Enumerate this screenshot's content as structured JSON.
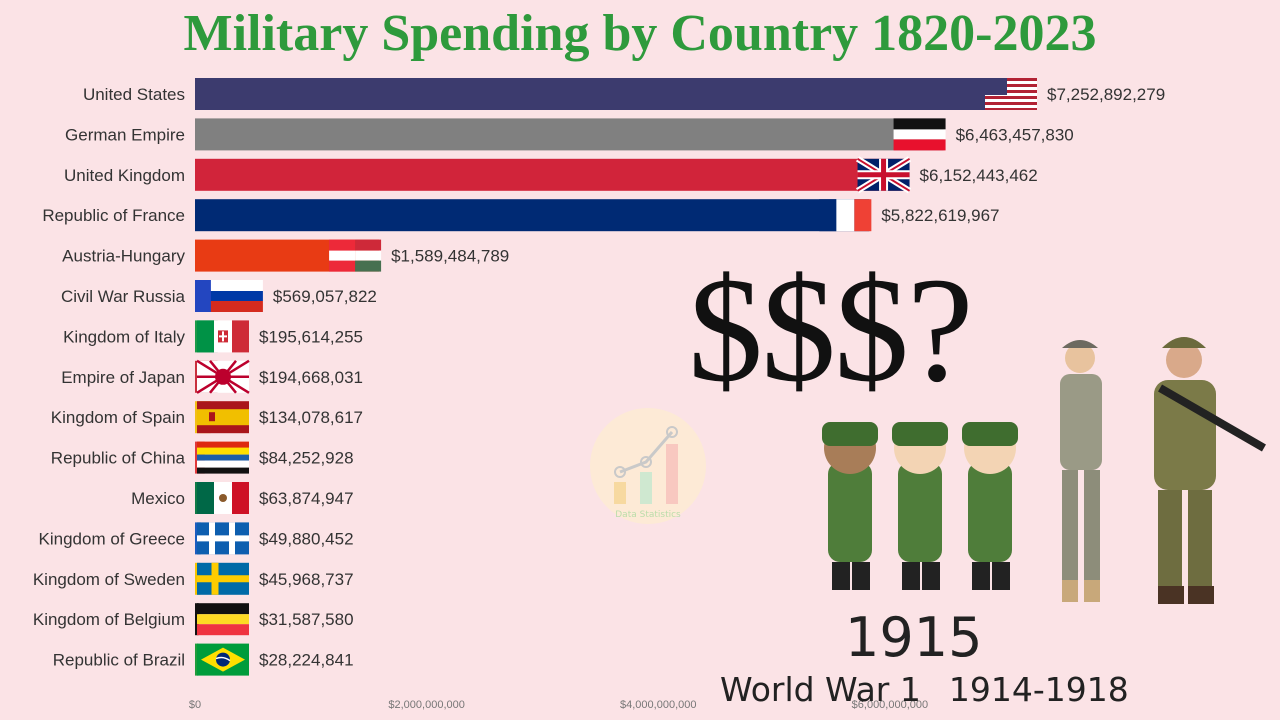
{
  "title": "Military Spending by Country 1820-2023",
  "overlay_text": "$$$?",
  "year": "1915",
  "event": {
    "name": "World War 1",
    "years": "1914-1918"
  },
  "watermark": "Data Statistics",
  "chart_data": {
    "type": "bar",
    "orientation": "horizontal",
    "title": "Military Spending by Country 1820-2023",
    "xlim": [
      0,
      7500000000
    ],
    "x_ticks": [
      {
        "value": 0,
        "label": "$0"
      },
      {
        "value": 2000000000,
        "label": "$2,000,000,000"
      },
      {
        "value": 4000000000,
        "label": "$4,000,000,000"
      },
      {
        "value": 6000000000,
        "label": "$6,000,000,000"
      }
    ],
    "bars": [
      {
        "category": "United States",
        "value": 7252892279,
        "value_label": "$7,252,892,279",
        "color": "#3c3b6e",
        "flag": "us-flag"
      },
      {
        "category": "German Empire",
        "value": 6463457830,
        "value_label": "$6,463,457,830",
        "color": "#808080",
        "flag": "german-empire-flag"
      },
      {
        "category": "United Kingdom",
        "value": 6152443462,
        "value_label": "$6,152,443,462",
        "color": "#d1243a",
        "flag": "uk-flag"
      },
      {
        "category": "Republic of France",
        "value": 5822619967,
        "value_label": "$5,822,619,967",
        "color": "#002a74",
        "flag": "france-flag"
      },
      {
        "category": "Austria-Hungary",
        "value": 1589484789,
        "value_label": "$1,589,484,789",
        "color": "#e83b14",
        "flag": "austria-hungary-flag"
      },
      {
        "category": "Civil War Russia",
        "value": 569057822,
        "value_label": "$569,057,822",
        "color": "#2346c0",
        "flag": "russia-flag"
      },
      {
        "category": "Kingdom of Italy",
        "value": 195614255,
        "value_label": "$195,614,255",
        "color": "#1b9a48",
        "flag": "italy-flag"
      },
      {
        "category": "Empire of Japan",
        "value": 194668031,
        "value_label": "$194,668,031",
        "color": "#c8313e",
        "flag": "japan-flag"
      },
      {
        "category": "Kingdom of Spain",
        "value": 134078617,
        "value_label": "$134,078,617",
        "color": "#f2bf16",
        "flag": "spain-flag"
      },
      {
        "category": "Republic of China",
        "value": 84252928,
        "value_label": "$84,252,928",
        "color": "#e0393b",
        "flag": "china-flag"
      },
      {
        "category": "Mexico",
        "value": 63874947,
        "value_label": "$63,874,947",
        "color": "#0f7a46",
        "flag": "mexico-flag"
      },
      {
        "category": "Kingdom of Greece",
        "value": 49880452,
        "value_label": "$49,880,452",
        "color": "#1b5dbf",
        "flag": "greece-flag"
      },
      {
        "category": "Kingdom of Sweden",
        "value": 45968737,
        "value_label": "$45,968,737",
        "color": "#f5c400",
        "flag": "sweden-flag"
      },
      {
        "category": "Kingdom of Belgium",
        "value": 31587580,
        "value_label": "$31,587,580",
        "color": "#111111",
        "flag": "belgium-flag"
      },
      {
        "category": "Republic of Brazil",
        "value": 28224841,
        "value_label": "$28,224,841",
        "color": "#1f9c3b",
        "flag": "brazil-flag"
      }
    ]
  }
}
